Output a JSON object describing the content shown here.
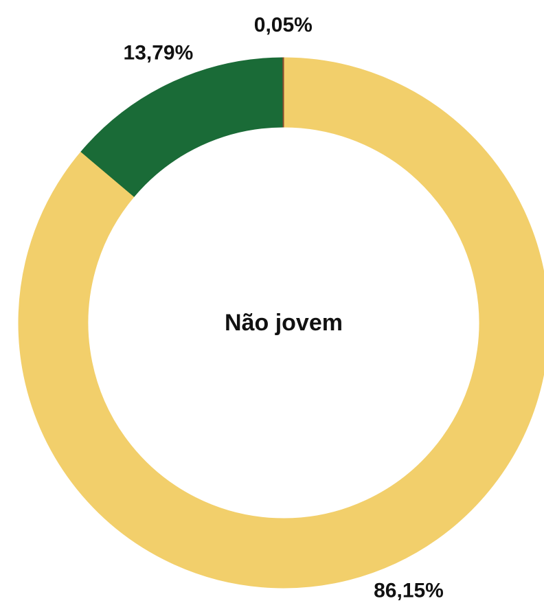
{
  "chart_data": {
    "type": "donut",
    "center_label": "Não jovem",
    "values": [
      86.15,
      13.79,
      0.05
    ],
    "value_labels": [
      "86,15%",
      "13,79%",
      "0,05%"
    ],
    "colors": [
      "#f2cf6b",
      "#1a6b37",
      "#8a4b2e"
    ],
    "start_angle": 0,
    "direction": "clockwise"
  }
}
